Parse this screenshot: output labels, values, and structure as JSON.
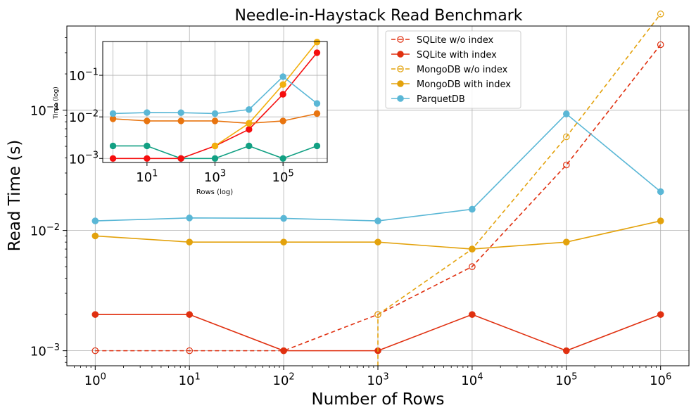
{
  "chart_data": [
    {
      "type": "line",
      "title": "Needle-in-Haystack Read Benchmark",
      "xlabel": "Number of Rows",
      "ylabel": "Read Time (s)",
      "xscale": "log",
      "yscale": "log",
      "xlim": [
        0.5,
        2000000
      ],
      "ylim": [
        0.00075,
        0.5
      ],
      "grid": true,
      "legend_position": "top-center",
      "x": [
        1,
        10,
        100,
        1000,
        10000,
        100000,
        1000000
      ],
      "x_tick_labels": [
        {
          "base": "10",
          "exp": "0"
        },
        {
          "base": "10",
          "exp": "1"
        },
        {
          "base": "10",
          "exp": "2"
        },
        {
          "base": "10",
          "exp": "3"
        },
        {
          "base": "10",
          "exp": "4"
        },
        {
          "base": "10",
          "exp": "5"
        },
        {
          "base": "10",
          "exp": "6"
        }
      ],
      "y_ticks": [
        0.001,
        0.01,
        0.1
      ],
      "y_tick_labels": [
        {
          "base": "10",
          "exp": "−3"
        },
        {
          "base": "10",
          "exp": "−2"
        },
        {
          "base": "10",
          "exp": "−1"
        }
      ],
      "series": [
        {
          "name": "SQLite w/o index",
          "color": "#e03010",
          "style": "dashed",
          "marker": "open",
          "values": [
            0.001,
            0.001,
            0.001,
            0.002,
            0.005,
            0.035,
            0.35
          ]
        },
        {
          "name": "SQLite with index",
          "color": "#e03010",
          "style": "solid",
          "marker": "filled",
          "values": [
            0.002,
            0.002,
            0.001,
            0.001,
            0.002,
            0.001,
            0.002
          ]
        },
        {
          "name": "MongoDB w/o index",
          "color": "#e3a20c",
          "style": "dashed",
          "marker": "open",
          "values": [
            null,
            null,
            null,
            0.002,
            0.007,
            0.06,
            0.63
          ],
          "drop_from": {
            "x": 1000,
            "y": 0.00075
          }
        },
        {
          "name": "MongoDB with index",
          "color": "#e3a20c",
          "style": "solid",
          "marker": "filled",
          "values": [
            0.009,
            0.008,
            0.008,
            0.008,
            0.007,
            0.008,
            0.012
          ]
        },
        {
          "name": "ParquetDB",
          "color": "#5ab7d6",
          "style": "solid",
          "marker": "filled",
          "values": [
            0.012,
            0.0127,
            0.0126,
            0.012,
            0.015,
            0.093,
            0.021
          ]
        }
      ]
    },
    {
      "type": "line",
      "title": "",
      "xlabel": "Rows (log)",
      "ylabel": "Time (log)",
      "xscale": "log",
      "yscale": "log",
      "xlim": [
        0.5,
        2000000
      ],
      "ylim": [
        0.0008,
        0.65
      ],
      "grid": true,
      "x": [
        1,
        10,
        100,
        1000,
        10000,
        100000,
        1000000
      ],
      "x_ticks": [
        10,
        1000,
        100000
      ],
      "x_tick_labels": [
        {
          "base": "10",
          "exp": "1"
        },
        {
          "base": "10",
          "exp": "3"
        },
        {
          "base": "10",
          "exp": "5"
        }
      ],
      "y_ticks": [
        0.001,
        0.01,
        0.1
      ],
      "y_tick_labels": [
        {
          "base": "10",
          "exp": "−3"
        },
        {
          "base": "10",
          "exp": "−2"
        },
        {
          "base": "10",
          "exp": "−1"
        }
      ],
      "series": [
        {
          "color": "#12a083",
          "values": [
            0.002,
            0.002,
            0.001,
            0.001,
            0.002,
            0.001,
            0.002
          ]
        },
        {
          "color": "#f50d0d",
          "values": [
            0.001,
            0.001,
            0.001,
            0.002,
            0.005,
            0.035,
            0.35
          ]
        },
        {
          "color": "#e8740f",
          "values": [
            0.009,
            0.008,
            0.008,
            0.008,
            0.007,
            0.008,
            0.012
          ]
        },
        {
          "color": "#f2b00e",
          "values": [
            null,
            null,
            null,
            0.002,
            0.007,
            0.06,
            0.63
          ]
        },
        {
          "color": "#5ab7d6",
          "values": [
            0.012,
            0.0127,
            0.0126,
            0.012,
            0.015,
            0.093,
            0.021
          ]
        }
      ]
    }
  ]
}
